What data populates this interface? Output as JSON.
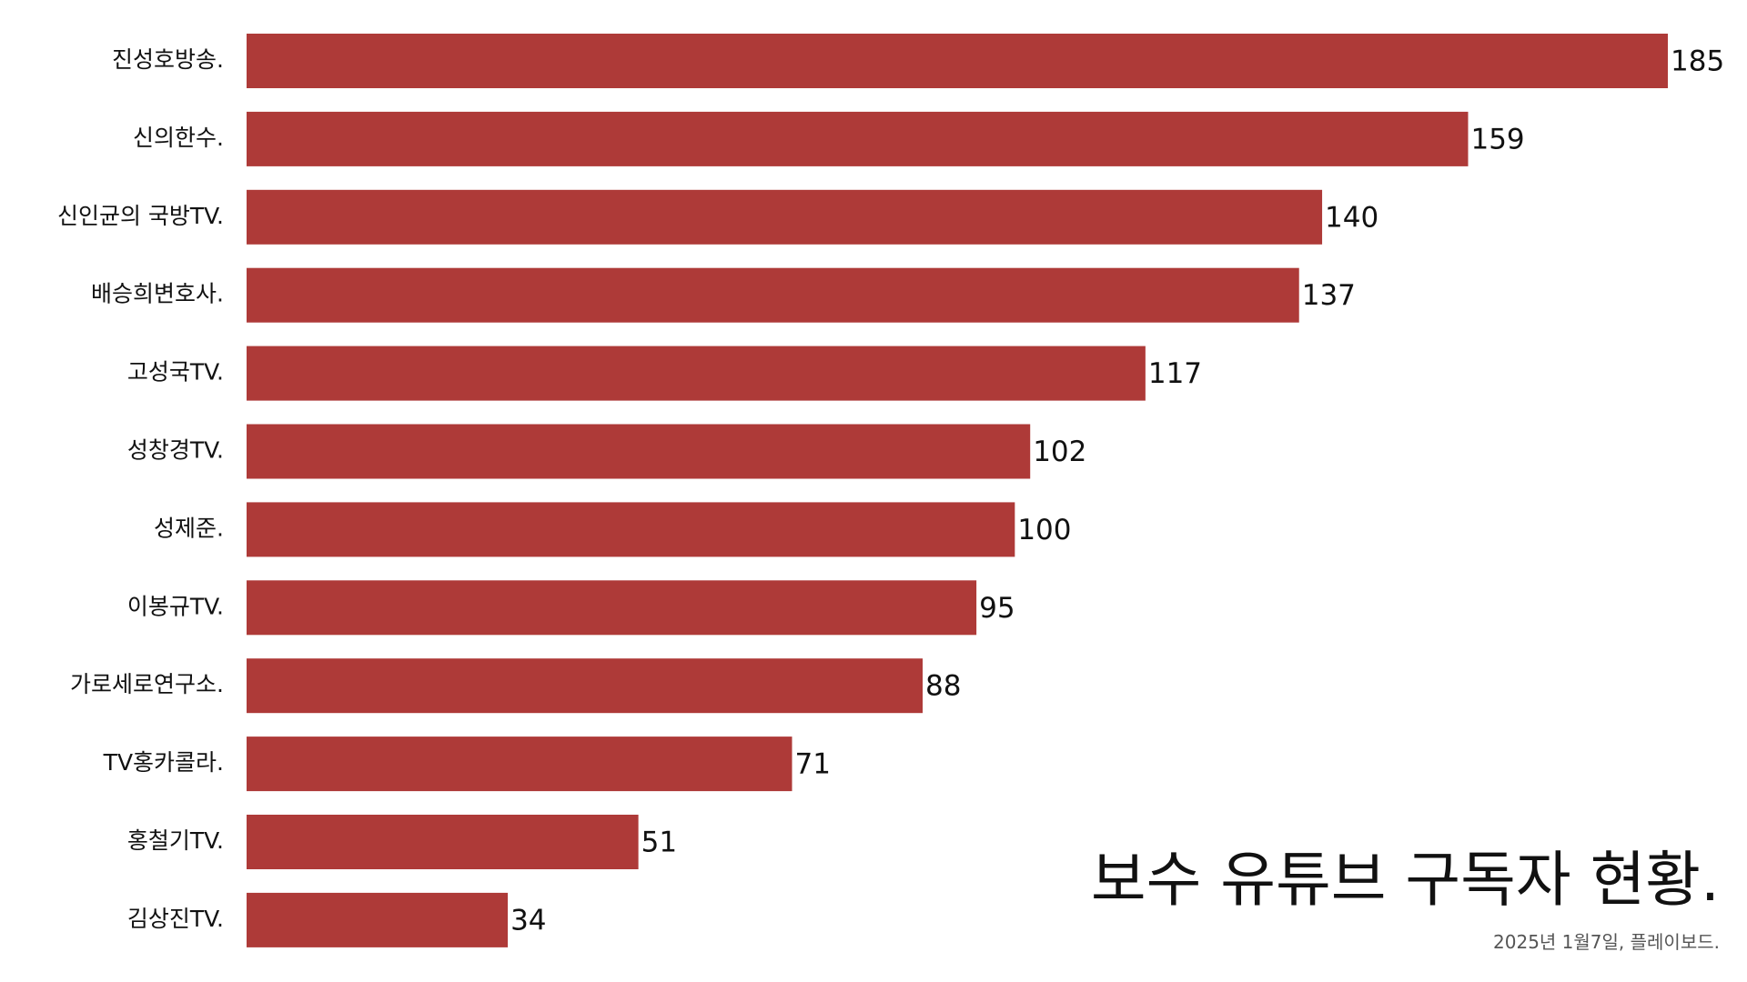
{
  "chart_data": {
    "type": "bar",
    "orientation": "horizontal",
    "title": "보수 유튜브 구독자 현황.",
    "subtitle": "2025년 1월7일, 플레이보드.",
    "categories": [
      "진성호방송.",
      "신의한수.",
      "신인균의 국방TV.",
      "배승희변호사.",
      "고성국TV.",
      "성창경TV.",
      "성제준.",
      "이봉규TV.",
      "가로세로연구소.",
      "TV홍카콜라.",
      "홍철기TV.",
      "김상진TV."
    ],
    "values": [
      185,
      159,
      140,
      137,
      117,
      102,
      100,
      95,
      88,
      71,
      51,
      34
    ],
    "color": "#ae3a38",
    "xlim": [
      0,
      185
    ]
  }
}
